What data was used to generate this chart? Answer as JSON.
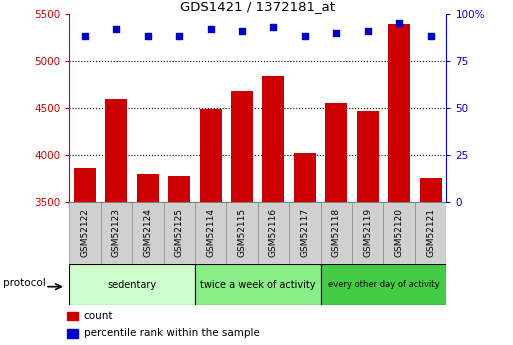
{
  "title": "GDS1421 / 1372181_at",
  "samples": [
    "GSM52122",
    "GSM52123",
    "GSM52124",
    "GSM52125",
    "GSM52114",
    "GSM52115",
    "GSM52116",
    "GSM52117",
    "GSM52118",
    "GSM52119",
    "GSM52120",
    "GSM52121"
  ],
  "counts": [
    3860,
    4590,
    3800,
    3780,
    4490,
    4680,
    4840,
    4020,
    4550,
    4470,
    5390,
    3750
  ],
  "percentile_ranks": [
    88,
    92,
    88,
    88,
    92,
    91,
    93,
    88,
    90,
    91,
    95,
    88
  ],
  "ylim_left": [
    3500,
    5500
  ],
  "ylim_right": [
    0,
    100
  ],
  "yticks_left": [
    3500,
    4000,
    4500,
    5000,
    5500
  ],
  "yticks_right": [
    0,
    25,
    50,
    75,
    100
  ],
  "bar_color": "#cc0000",
  "dot_color": "#0000cc",
  "groups": [
    {
      "label": "sedentary",
      "start": 0,
      "end": 4,
      "color": "#ccffcc"
    },
    {
      "label": "twice a week of activity",
      "start": 4,
      "end": 8,
      "color": "#88ee88"
    },
    {
      "label": "every other day of activity",
      "start": 8,
      "end": 12,
      "color": "#44cc44"
    }
  ],
  "protocol_label": "protocol",
  "legend_count_label": "count",
  "legend_pct_label": "percentile rank within the sample",
  "bar_cell_color": "#d0d0d0",
  "left_axis_color": "#cc0000",
  "right_axis_color": "#0000cc",
  "dotgrid_color": [
    4000,
    4500,
    5000
  ],
  "cell_border_color": "#888888"
}
